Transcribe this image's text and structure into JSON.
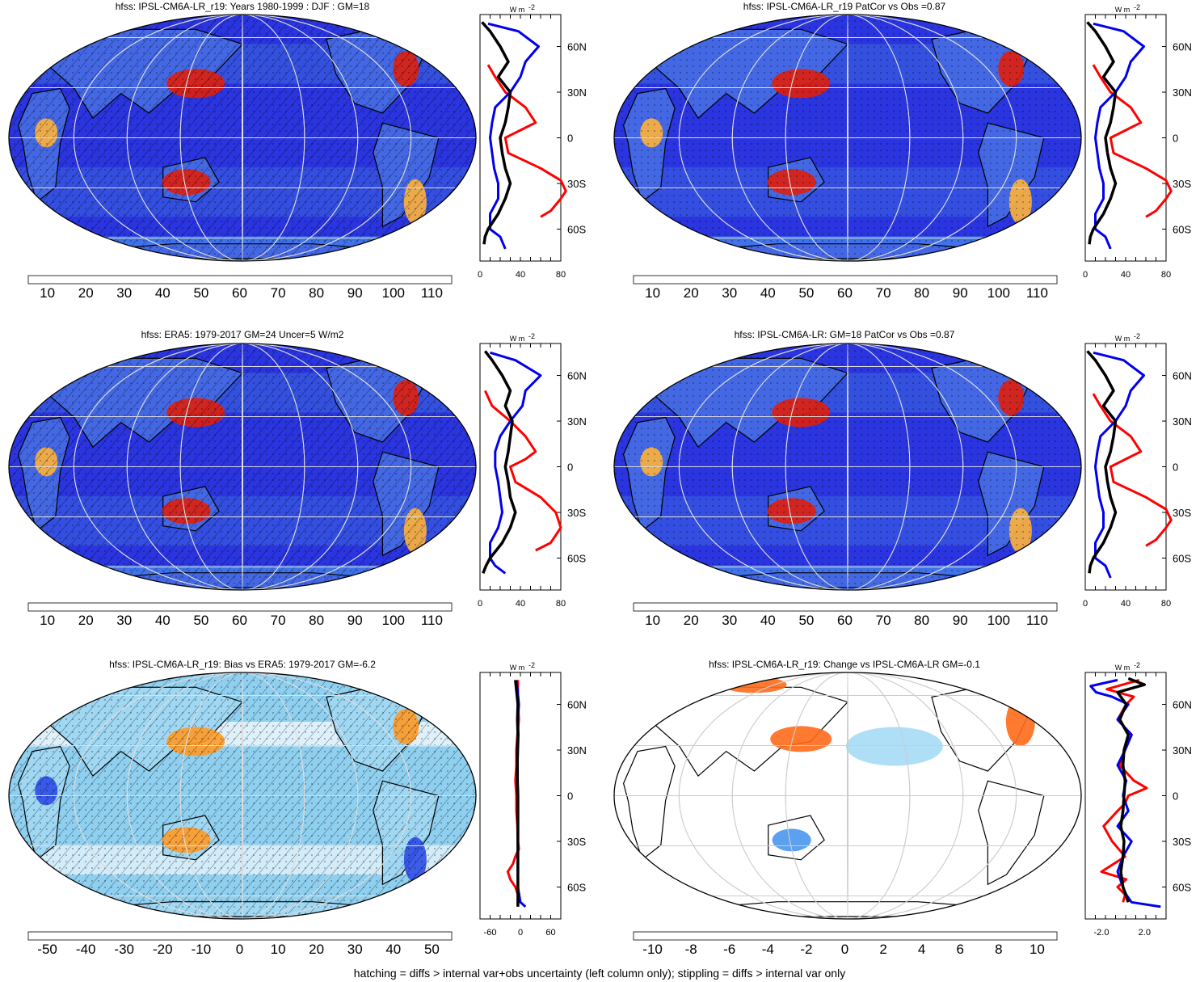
{
  "footnote": "hatching = diffs > internal var+obs uncertainty (left column only); stippling = diffs > internal var only",
  "colors": {
    "zonal_line_red": "#ff0000",
    "zonal_line_blue": "#0000ee",
    "zonal_line_black": "#000000",
    "ocean_low": "#2233dd",
    "land_high": "#dd1100"
  },
  "chart_data": [
    {
      "id": "p1",
      "type": "heatmap",
      "title": "hfss: IPSL-CM6A-LR_r19: Years 1980-1999 : DJF : GM=18",
      "colorbar_ticks": [
        "10",
        "20",
        "30",
        "40",
        "50",
        "60",
        "70",
        "80",
        "90",
        "100",
        "110"
      ],
      "colorbar_range": [
        5,
        115
      ],
      "zonal_mean": {
        "unit_label": "W m",
        "unit_exp": "-2",
        "x_ticks": [
          "0",
          "40",
          "80"
        ],
        "x_range": [
          0,
          80
        ],
        "lat_ticks": [
          "60N",
          "30N",
          "0",
          "30S",
          "60S"
        ],
        "series": [
          {
            "color": "red",
            "lat": [
              48,
              40,
              30,
              20,
              10,
              5,
              0,
              -10,
              -20,
              -28,
              -35,
              -40,
              -48,
              -52
            ],
            "values": [
              8,
              15,
              25,
              45,
              55,
              40,
              25,
              28,
              60,
              80,
              85,
              80,
              70,
              60
            ]
          },
          {
            "color": "blue",
            "lat": [
              75,
              70,
              60,
              50,
              40,
              30,
              20,
              10,
              0,
              -10,
              -20,
              -30,
              -40,
              -50,
              -60,
              -65,
              -73
            ],
            "values": [
              8,
              38,
              58,
              45,
              40,
              30,
              15,
              12,
              10,
              12,
              14,
              18,
              18,
              10,
              10,
              20,
              25
            ]
          },
          {
            "color": "black",
            "lat": [
              76,
              70,
              60,
              50,
              40,
              30,
              20,
              10,
              0,
              -10,
              -20,
              -30,
              -40,
              -50,
              -60,
              -65,
              -70
            ],
            "values": [
              2,
              10,
              20,
              28,
              18,
              30,
              28,
              25,
              20,
              22,
              25,
              30,
              25,
              18,
              8,
              5,
              4
            ]
          }
        ]
      }
    },
    {
      "id": "p2",
      "type": "heatmap",
      "title": "hfss: IPSL-CM6A-LR_r19 PatCor vs Obs =0.87",
      "colorbar_ticks": [
        "10",
        "20",
        "30",
        "40",
        "50",
        "60",
        "70",
        "80",
        "90",
        "100",
        "110"
      ],
      "colorbar_range": [
        5,
        115
      ],
      "zonal_mean": {
        "unit_label": "W m",
        "unit_exp": "-2",
        "x_ticks": [
          "0",
          "40",
          "80"
        ],
        "x_range": [
          0,
          80
        ],
        "lat_ticks": [
          "60N",
          "30N",
          "0",
          "30S",
          "60S"
        ],
        "series": [
          {
            "color": "red",
            "lat": [
              48,
              40,
              30,
              20,
              10,
              5,
              0,
              -10,
              -20,
              -28,
              -35,
              -40,
              -48,
              -52
            ],
            "values": [
              8,
              15,
              25,
              45,
              55,
              40,
              25,
              28,
              60,
              80,
              85,
              80,
              70,
              60
            ]
          },
          {
            "color": "blue",
            "lat": [
              75,
              70,
              60,
              50,
              40,
              30,
              20,
              10,
              0,
              -10,
              -20,
              -30,
              -40,
              -50,
              -60,
              -65,
              -73
            ],
            "values": [
              8,
              38,
              58,
              45,
              40,
              30,
              15,
              12,
              10,
              12,
              14,
              18,
              18,
              10,
              10,
              20,
              25
            ]
          },
          {
            "color": "black",
            "lat": [
              76,
              70,
              60,
              50,
              40,
              30,
              20,
              10,
              0,
              -10,
              -20,
              -30,
              -40,
              -50,
              -60,
              -65,
              -70
            ],
            "values": [
              2,
              10,
              20,
              28,
              18,
              30,
              28,
              25,
              20,
              22,
              25,
              30,
              25,
              18,
              8,
              5,
              4
            ]
          }
        ]
      }
    },
    {
      "id": "p3",
      "type": "heatmap",
      "title": "hfss: ERA5: 1979-2017 GM=24 Uncer=5 W/m2",
      "colorbar_ticks": [
        "10",
        "20",
        "30",
        "40",
        "50",
        "60",
        "70",
        "80",
        "90",
        "100",
        "110"
      ],
      "colorbar_range": [
        5,
        115
      ],
      "zonal_mean": {
        "unit_label": "W m",
        "unit_exp": "-2",
        "x_ticks": [
          "0",
          "40",
          "80"
        ],
        "x_range": [
          0,
          80
        ],
        "lat_ticks": [
          "60N",
          "30N",
          "0",
          "30S",
          "60S"
        ],
        "series": [
          {
            "color": "red",
            "lat": [
              50,
              40,
              30,
              20,
              10,
              5,
              0,
              -10,
              -20,
              -30,
              -40,
              -50,
              -55
            ],
            "values": [
              5,
              12,
              30,
              45,
              55,
              45,
              30,
              35,
              60,
              75,
              80,
              70,
              55
            ]
          },
          {
            "color": "blue",
            "lat": [
              75,
              70,
              60,
              50,
              40,
              30,
              20,
              10,
              0,
              -10,
              -20,
              -30,
              -40,
              -50,
              -60,
              -65,
              -70
            ],
            "values": [
              10,
              35,
              60,
              45,
              42,
              30,
              20,
              15,
              15,
              18,
              20,
              22,
              18,
              10,
              10,
              15,
              25
            ]
          },
          {
            "color": "black",
            "lat": [
              76,
              70,
              60,
              50,
              40,
              30,
              20,
              10,
              0,
              -10,
              -20,
              -30,
              -40,
              -50,
              -60,
              -65,
              -70
            ],
            "values": [
              5,
              12,
              22,
              30,
              25,
              32,
              30,
              28,
              25,
              28,
              30,
              35,
              30,
              22,
              10,
              6,
              3
            ]
          }
        ]
      }
    },
    {
      "id": "p4",
      "type": "heatmap",
      "title": "hfss: IPSL-CM6A-LR: GM=18 PatCor vs Obs =0.87",
      "colorbar_ticks": [
        "10",
        "20",
        "30",
        "40",
        "50",
        "60",
        "70",
        "80",
        "90",
        "100",
        "110"
      ],
      "colorbar_range": [
        5,
        115
      ],
      "zonal_mean": {
        "unit_label": "W m",
        "unit_exp": "-2",
        "x_ticks": [
          "0",
          "40",
          "80"
        ],
        "x_range": [
          0,
          80
        ],
        "lat_ticks": [
          "60N",
          "30N",
          "0",
          "30S",
          "60S"
        ],
        "series": [
          {
            "color": "red",
            "lat": [
              48,
              40,
              30,
              20,
              10,
              5,
              0,
              -10,
              -20,
              -28,
              -35,
              -40,
              -48,
              -52
            ],
            "values": [
              8,
              15,
              25,
              45,
              55,
              40,
              25,
              28,
              60,
              80,
              85,
              80,
              70,
              60
            ]
          },
          {
            "color": "blue",
            "lat": [
              75,
              70,
              60,
              50,
              40,
              30,
              20,
              10,
              0,
              -10,
              -20,
              -30,
              -40,
              -50,
              -60,
              -65,
              -73
            ],
            "values": [
              8,
              38,
              58,
              45,
              40,
              30,
              15,
              12,
              10,
              12,
              14,
              18,
              18,
              10,
              10,
              20,
              25
            ]
          },
          {
            "color": "black",
            "lat": [
              76,
              70,
              60,
              50,
              40,
              30,
              20,
              10,
              0,
              -10,
              -20,
              -30,
              -40,
              -50,
              -60,
              -65,
              -70
            ],
            "values": [
              2,
              10,
              20,
              28,
              18,
              30,
              28,
              25,
              20,
              22,
              25,
              30,
              25,
              18,
              8,
              5,
              4
            ]
          }
        ]
      }
    },
    {
      "id": "p5",
      "type": "heatmap",
      "title": "hfss: IPSL-CM6A-LR_r19: Bias vs ERA5: 1979-2017 GM=-6.2",
      "colorbar_ticks": [
        "-50",
        "-40",
        "-30",
        "-20",
        "-10",
        "0",
        "10",
        "20",
        "30",
        "40",
        "50"
      ],
      "colorbar_range": [
        -55,
        55
      ],
      "zonal_mean": {
        "unit_label": "W m",
        "unit_exp": "-2",
        "x_ticks": [
          "-60",
          "0",
          "60"
        ],
        "x_range": [
          -80,
          80
        ],
        "lat_ticks": [
          "60N",
          "30N",
          "0",
          "30S",
          "60S"
        ],
        "series": [
          {
            "color": "red",
            "lat": [
              76,
              60,
              50,
              40,
              30,
              20,
              10,
              0,
              -10,
              -20,
              -30,
              -35,
              -40,
              -45,
              -50,
              -55,
              -60,
              -65
            ],
            "values": [
              -5,
              -5,
              -3,
              -6,
              -8,
              -8,
              -10,
              -8,
              -8,
              -6,
              -5,
              -3,
              -10,
              -15,
              -25,
              -20,
              -10,
              -5
            ]
          },
          {
            "color": "blue",
            "lat": [
              76,
              70,
              60,
              50,
              40,
              30,
              20,
              10,
              0,
              -10,
              -20,
              -30,
              -40,
              -50,
              -60,
              -70,
              -73
            ],
            "values": [
              -8,
              -6,
              -3,
              -5,
              -4,
              -5,
              -6,
              -6,
              -5,
              -5,
              -5,
              -5,
              -5,
              -5,
              -5,
              0,
              10
            ]
          },
          {
            "color": "black",
            "lat": [
              76,
              70,
              60,
              50,
              40,
              30,
              20,
              10,
              0,
              -10,
              -20,
              -30,
              -40,
              -50,
              -60,
              -70,
              -73
            ],
            "values": [
              -10,
              -8,
              -5,
              -6,
              -5,
              -6,
              -6,
              -6,
              -5,
              -5,
              -5,
              -5,
              -5,
              -5,
              -5,
              -5,
              -5
            ]
          }
        ]
      }
    },
    {
      "id": "p6",
      "type": "heatmap",
      "title": "hfss: IPSL-CM6A-LR_r19: Change vs IPSL-CM6A-LR GM=-0.1",
      "colorbar_ticks": [
        "-10",
        "-8",
        "-6",
        "-4",
        "-2",
        "0",
        "2",
        "4",
        "6",
        "8",
        "10"
      ],
      "colorbar_range": [
        -11,
        11
      ],
      "zonal_mean": {
        "unit_label": "W m",
        "unit_exp": "-2",
        "x_ticks": [
          "-2.0",
          "2.0"
        ],
        "x_range": [
          -3.5,
          4
        ],
        "lat_ticks": [
          "60N",
          "30N",
          "0",
          "30S",
          "60S"
        ],
        "series": [
          {
            "color": "red",
            "lat": [
              76,
              70,
              65,
              60,
              50,
              40,
              30,
              20,
              10,
              5,
              0,
              -5,
              -10,
              -20,
              -30,
              -40,
              -50,
              -55,
              -60,
              -65,
              -70
            ],
            "values": [
              1.5,
              -1.5,
              1.0,
              0.3,
              -0.5,
              0.8,
              0.2,
              -0.3,
              1.0,
              2.2,
              0.5,
              0.2,
              -0.5,
              -1.8,
              -1.0,
              0.2,
              -2.0,
              0.3,
              -0.5,
              0.2,
              0.0
            ]
          },
          {
            "color": "blue",
            "lat": [
              76,
              72,
              68,
              65,
              60,
              50,
              40,
              30,
              20,
              10,
              0,
              -10,
              -20,
              -30,
              -40,
              -50,
              -60,
              -65,
              -70,
              -73
            ],
            "values": [
              -0.5,
              -3.0,
              -2.5,
              -1.0,
              0.5,
              -0.5,
              0.8,
              0.2,
              -0.5,
              0.3,
              0.0,
              0.5,
              -0.5,
              0.8,
              0.0,
              -0.5,
              0.0,
              0.3,
              0.8,
              3.5
            ]
          },
          {
            "color": "black",
            "lat": [
              77,
              73,
              68,
              60,
              50,
              40,
              30,
              20,
              10,
              0,
              -10,
              -20,
              -30,
              -40,
              -50,
              -60,
              -70
            ],
            "values": [
              0.5,
              2.0,
              -0.5,
              0.3,
              -0.3,
              0.5,
              0.1,
              0.0,
              0.2,
              0.1,
              0.0,
              -0.2,
              0.1,
              0.0,
              -0.2,
              0.0,
              0.5
            ]
          }
        ]
      }
    }
  ]
}
